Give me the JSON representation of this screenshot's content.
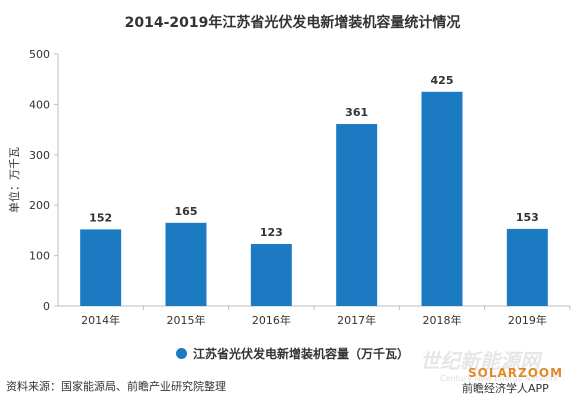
{
  "chart_data": {
    "type": "bar",
    "title": "2014-2019年江苏省光伏发电新增装机容量统计情况",
    "ylabel": "单位：万千瓦",
    "xlabel": "",
    "categories": [
      "2014年",
      "2015年",
      "2016年",
      "2017年",
      "2018年",
      "2019年"
    ],
    "values": [
      152,
      165,
      123,
      361,
      425,
      153
    ],
    "series": [
      {
        "name": "江苏省光伏发电新增装机容量（万千瓦）",
        "values": [
          152,
          165,
          123,
          361,
          425,
          153
        ]
      }
    ],
    "ylim": [
      0,
      500
    ],
    "yticks": [
      "0",
      "100",
      "200",
      "300",
      "400",
      "500"
    ],
    "grid": false,
    "legend": "bottom"
  },
  "colors": {
    "bar": "#1b7ac2",
    "logo": "#e0892a"
  },
  "source_note": "资料来源：国家能源局、前瞻产业研究院整理",
  "logo_text": "SOLARZOOM",
  "app_note": "前瞻经济学人APP",
  "watermark": "世纪新能源网"
}
